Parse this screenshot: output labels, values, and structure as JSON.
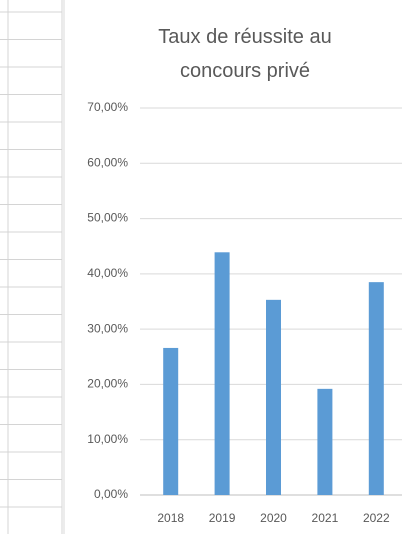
{
  "chart_data": {
    "type": "bar",
    "title": "Taux de réussite au concours privé",
    "categories": [
      "2018",
      "2019",
      "2020",
      "2021",
      "2022"
    ],
    "values": [
      26.6,
      43.9,
      35.3,
      19.2,
      38.5
    ],
    "color": "#5b9bd5",
    "ylim": [
      0,
      70
    ],
    "yticks": [
      {
        "value": 0,
        "label": "0,00%"
      },
      {
        "value": 10,
        "label": "10,00%"
      },
      {
        "value": 20,
        "label": "20,00%"
      },
      {
        "value": 30,
        "label": "30,00%"
      },
      {
        "value": 40,
        "label": "40,00%"
      },
      {
        "value": 50,
        "label": "50,00%"
      },
      {
        "value": 60,
        "label": "60,00%"
      },
      {
        "value": 70,
        "label": "70,00%"
      }
    ],
    "grid": true
  }
}
